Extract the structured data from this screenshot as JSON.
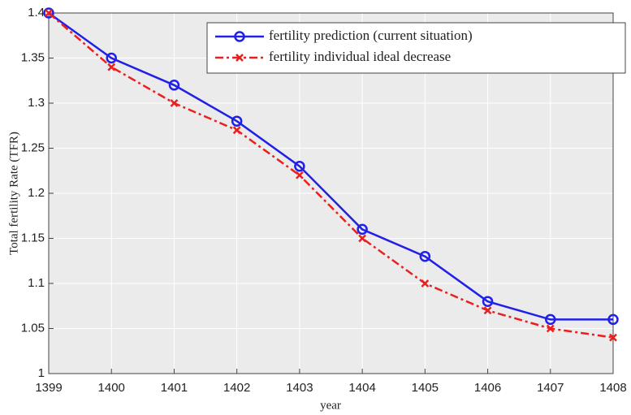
{
  "chart_data": {
    "type": "line",
    "x_label": "year",
    "y_label": "Total fertility Rate (TFR)",
    "x": [
      1399,
      1400,
      1401,
      1402,
      1403,
      1404,
      1405,
      1406,
      1407,
      1408
    ],
    "series": [
      {
        "name": "fertility prediction (current situation)",
        "color": "#2020e8",
        "marker": "circle",
        "dash": "solid",
        "values": [
          1.4,
          1.35,
          1.32,
          1.28,
          1.23,
          1.16,
          1.13,
          1.08,
          1.06,
          1.06
        ]
      },
      {
        "name": "fertility individual ideal decrease",
        "color": "#e82020",
        "marker": "x",
        "dash": "dashdot",
        "values": [
          1.4,
          1.34,
          1.3,
          1.27,
          1.22,
          1.15,
          1.1,
          1.07,
          1.05,
          1.04
        ]
      }
    ],
    "xlim": [
      1399,
      1408
    ],
    "xticks": [
      1399,
      1400,
      1401,
      1402,
      1403,
      1404,
      1405,
      1406,
      1407,
      1408
    ],
    "ylim": [
      1,
      1.4
    ],
    "yticks": [
      1,
      1.05,
      1.1,
      1.15,
      1.2,
      1.25,
      1.3,
      1.35,
      1.4
    ],
    "grid": true,
    "legend": "top-right"
  }
}
